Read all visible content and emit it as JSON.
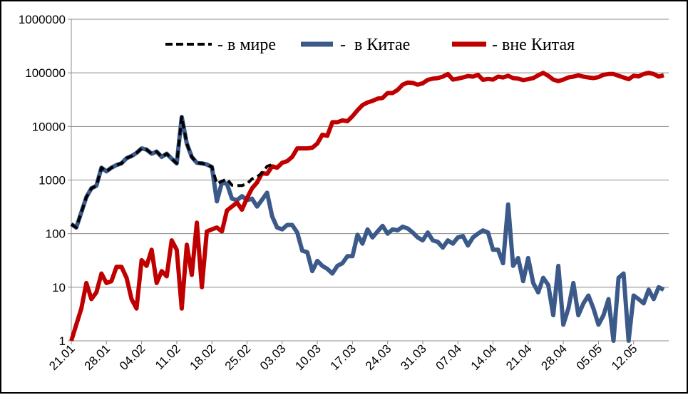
{
  "chart_data": {
    "type": "line",
    "title": "",
    "xlabel": "",
    "ylabel": "",
    "y_scale": "log",
    "ylim": [
      1,
      1000000
    ],
    "y_ticks": [
      1,
      10,
      100,
      1000,
      10000,
      100000,
      1000000
    ],
    "y_tick_labels": [
      "1",
      "10",
      "100",
      "1000",
      "10000",
      "100000",
      "1000000"
    ],
    "x_range": [
      "21.01",
      "19.05"
    ],
    "x_tick_labels": [
      "21.01",
      "28.01",
      "04.02",
      "11.02",
      "18.02",
      "25.02",
      "03.03",
      "10.03",
      "17.03",
      "24.03",
      "31.03",
      "07.04",
      "14.04",
      "21.04",
      "28.04",
      "05.05",
      "12.05"
    ],
    "grid": "horizontal",
    "legend": {
      "placement": "top",
      "entries": [
        {
          "label": "- в мире",
          "color": "#000000",
          "style": "dashed"
        },
        {
          "label": "-  в Китае",
          "color": "#3b5a8a",
          "style": "solid"
        },
        {
          "label": "- вне Китая",
          "color": "#c00000",
          "style": "solid"
        }
      ]
    },
    "series": [
      {
        "name": "в Китае",
        "color": "#3b5a8a",
        "style": "solid",
        "points": [
          [
            "21.01",
            150
          ],
          [
            "22.01",
            130
          ],
          [
            "23.01",
            250
          ],
          [
            "24.01",
            480
          ],
          [
            "25.01",
            700
          ],
          [
            "26.01",
            780
          ],
          [
            "27.01",
            1700
          ],
          [
            "28.01",
            1450
          ],
          [
            "29.01",
            1700
          ],
          [
            "30.01",
            1900
          ],
          [
            "31.01",
            2050
          ],
          [
            "01.02",
            2550
          ],
          [
            "02.02",
            2800
          ],
          [
            "03.02",
            3200
          ],
          [
            "04.02",
            3900
          ],
          [
            "05.02",
            3700
          ],
          [
            "06.02",
            3100
          ],
          [
            "07.02",
            3400
          ],
          [
            "08.02",
            2700
          ],
          [
            "09.02",
            3100
          ],
          [
            "10.02",
            2500
          ],
          [
            "11.02",
            2050
          ],
          [
            "12.02",
            15000
          ],
          [
            "13.02",
            4800
          ],
          [
            "14.02",
            2700
          ],
          [
            "15.02",
            2100
          ],
          [
            "16.02",
            2050
          ],
          [
            "17.02",
            1950
          ],
          [
            "18.02",
            1750
          ],
          [
            "19.02",
            400
          ],
          [
            "20.02",
            900
          ],
          [
            "21.02",
            850
          ],
          [
            "22.02",
            450
          ],
          [
            "23.02",
            420
          ],
          [
            "24.02",
            500
          ],
          [
            "25.02",
            420
          ],
          [
            "26.02",
            450
          ],
          [
            "27.02",
            320
          ],
          [
            "28.02",
            430
          ],
          [
            "29.02",
            580
          ],
          [
            "01.03",
            210
          ],
          [
            "02.03",
            130
          ],
          [
            "03.03",
            120
          ],
          [
            "04.03",
            145
          ],
          [
            "05.03",
            145
          ],
          [
            "06.03",
            105
          ],
          [
            "07.03",
            48
          ],
          [
            "08.03",
            45
          ],
          [
            "09.03",
            20
          ],
          [
            "10.03",
            31
          ],
          [
            "11.03",
            25
          ],
          [
            "12.03",
            22
          ],
          [
            "13.03",
            18
          ],
          [
            "14.03",
            25
          ],
          [
            "15.03",
            28
          ],
          [
            "16.03",
            38
          ],
          [
            "17.03",
            38
          ],
          [
            "18.03",
            95
          ],
          [
            "19.03",
            65
          ],
          [
            "20.03",
            120
          ],
          [
            "21.03",
            85
          ],
          [
            "22.03",
            110
          ],
          [
            "23.03",
            140
          ],
          [
            "24.03",
            100
          ],
          [
            "25.03",
            120
          ],
          [
            "26.03",
            115
          ],
          [
            "27.03",
            135
          ],
          [
            "28.03",
            125
          ],
          [
            "29.03",
            105
          ],
          [
            "30.03",
            85
          ],
          [
            "31.03",
            75
          ],
          [
            "01.04",
            105
          ],
          [
            "02.04",
            75
          ],
          [
            "03.04",
            70
          ],
          [
            "04.04",
            55
          ],
          [
            "05.04",
            75
          ],
          [
            "06.04",
            65
          ],
          [
            "07.04",
            85
          ],
          [
            "08.04",
            90
          ],
          [
            "09.04",
            60
          ],
          [
            "10.04",
            85
          ],
          [
            "11.04",
            100
          ],
          [
            "12.04",
            115
          ],
          [
            "13.04",
            105
          ],
          [
            "14.04",
            50
          ],
          [
            "15.04",
            50
          ],
          [
            "16.04",
            28
          ],
          [
            "17.04",
            350
          ],
          [
            "18.04",
            25
          ],
          [
            "19.04",
            35
          ],
          [
            "20.04",
            13
          ],
          [
            "21.04",
            35
          ],
          [
            "22.04",
            12
          ],
          [
            "23.04",
            8
          ],
          [
            "24.04",
            15
          ],
          [
            "25.04",
            11
          ],
          [
            "26.04",
            3
          ],
          [
            "27.04",
            25
          ],
          [
            "28.04",
            2
          ],
          [
            "29.04",
            4
          ],
          [
            "30.04",
            12
          ],
          [
            "01.05",
            3
          ],
          [
            "02.05",
            5
          ],
          [
            "03.05",
            7
          ],
          [
            "04.05",
            4
          ],
          [
            "05.05",
            2
          ],
          [
            "06.05",
            3
          ],
          [
            "07.05",
            6
          ],
          [
            "08.05",
            1
          ],
          [
            "09.05",
            15
          ],
          [
            "10.05",
            18
          ],
          [
            "11.05",
            1
          ],
          [
            "12.05",
            7
          ],
          [
            "13.05",
            6
          ],
          [
            "14.05",
            5
          ],
          [
            "15.05",
            9
          ],
          [
            "16.05",
            6
          ],
          [
            "17.05",
            10
          ],
          [
            "18.05",
            9
          ]
        ]
      },
      {
        "name": "вне Китая",
        "color": "#c00000",
        "style": "solid",
        "points": [
          [
            "21.01",
            1
          ],
          [
            "22.01",
            2
          ],
          [
            "23.01",
            4
          ],
          [
            "24.01",
            12
          ],
          [
            "25.01",
            6
          ],
          [
            "26.01",
            8
          ],
          [
            "27.01",
            18
          ],
          [
            "28.01",
            12
          ],
          [
            "29.01",
            13
          ],
          [
            "30.01",
            24
          ],
          [
            "31.01",
            24
          ],
          [
            "01.02",
            15
          ],
          [
            "02.02",
            6
          ],
          [
            "03.02",
            4
          ],
          [
            "04.02",
            32
          ],
          [
            "05.02",
            25
          ],
          [
            "06.02",
            50
          ],
          [
            "07.02",
            12
          ],
          [
            "08.02",
            20
          ],
          [
            "09.02",
            16
          ],
          [
            "10.02",
            75
          ],
          [
            "11.02",
            50
          ],
          [
            "12.02",
            4
          ],
          [
            "13.02",
            62
          ],
          [
            "14.02",
            17
          ],
          [
            "15.02",
            160
          ],
          [
            "16.02",
            10
          ],
          [
            "17.02",
            110
          ],
          [
            "18.02",
            120
          ],
          [
            "19.02",
            130
          ],
          [
            "20.02",
            110
          ],
          [
            "21.02",
            270
          ],
          [
            "22.02",
            320
          ],
          [
            "23.02",
            380
          ],
          [
            "24.02",
            280
          ],
          [
            "25.02",
            460
          ],
          [
            "26.02",
            700
          ],
          [
            "27.02",
            900
          ],
          [
            "28.02",
            1350
          ],
          [
            "29.02",
            1300
          ],
          [
            "01.03",
            1800
          ],
          [
            "02.03",
            1700
          ],
          [
            "03.03",
            2100
          ],
          [
            "04.03",
            2250
          ],
          [
            "05.03",
            2700
          ],
          [
            "06.03",
            3900
          ],
          [
            "07.03",
            3900
          ],
          [
            "08.03",
            3900
          ],
          [
            "09.03",
            4000
          ],
          [
            "10.03",
            4800
          ],
          [
            "11.03",
            7000
          ],
          [
            "12.03",
            6700
          ],
          [
            "13.03",
            12000
          ],
          [
            "14.03",
            12000
          ],
          [
            "15.03",
            13000
          ],
          [
            "16.03",
            12500
          ],
          [
            "17.03",
            15500
          ],
          [
            "18.03",
            20000
          ],
          [
            "19.03",
            25000
          ],
          [
            "20.03",
            28000
          ],
          [
            "21.03",
            30000
          ],
          [
            "22.03",
            33000
          ],
          [
            "23.03",
            34000
          ],
          [
            "24.03",
            42000
          ],
          [
            "25.03",
            42000
          ],
          [
            "26.03",
            48000
          ],
          [
            "27.03",
            60000
          ],
          [
            "28.03",
            66000
          ],
          [
            "29.03",
            65000
          ],
          [
            "30.03",
            60000
          ],
          [
            "31.03",
            64000
          ],
          [
            "01.04",
            74000
          ],
          [
            "02.04",
            78000
          ],
          [
            "03.04",
            80000
          ],
          [
            "04.04",
            85000
          ],
          [
            "05.04",
            95000
          ],
          [
            "06.04",
            75000
          ],
          [
            "07.04",
            78000
          ],
          [
            "08.04",
            82000
          ],
          [
            "09.04",
            87000
          ],
          [
            "10.04",
            85000
          ],
          [
            "11.04",
            92000
          ],
          [
            "12.04",
            74000
          ],
          [
            "13.04",
            77000
          ],
          [
            "14.04",
            75000
          ],
          [
            "15.04",
            85000
          ],
          [
            "16.04",
            82000
          ],
          [
            "17.04",
            88000
          ],
          [
            "18.04",
            80000
          ],
          [
            "19.04",
            78000
          ],
          [
            "20.04",
            73000
          ],
          [
            "21.04",
            76000
          ],
          [
            "22.04",
            80000
          ],
          [
            "23.04",
            90000
          ],
          [
            "24.04",
            100000
          ],
          [
            "25.04",
            88000
          ],
          [
            "26.04",
            75000
          ],
          [
            "27.04",
            70000
          ],
          [
            "28.04",
            75000
          ],
          [
            "29.04",
            82000
          ],
          [
            "30.04",
            85000
          ],
          [
            "01.05",
            90000
          ],
          [
            "02.05",
            85000
          ],
          [
            "03.05",
            82000
          ],
          [
            "04.05",
            80000
          ],
          [
            "05.05",
            83000
          ],
          [
            "06.05",
            92000
          ],
          [
            "07.05",
            95000
          ],
          [
            "08.05",
            95000
          ],
          [
            "09.05",
            88000
          ],
          [
            "10.05",
            82000
          ],
          [
            "11.05",
            76000
          ],
          [
            "12.05",
            88000
          ],
          [
            "13.05",
            86000
          ],
          [
            "14.05",
            95000
          ],
          [
            "15.05",
            100000
          ],
          [
            "16.05",
            95000
          ],
          [
            "17.05",
            85000
          ],
          [
            "18.05",
            90000
          ]
        ]
      },
      {
        "name": "в мире",
        "color": "#000000",
        "style": "dashed",
        "points": [
          [
            "21.01",
            150
          ],
          [
            "22.01",
            130
          ],
          [
            "23.01",
            250
          ],
          [
            "24.01",
            480
          ],
          [
            "25.01",
            700
          ],
          [
            "26.01",
            780
          ],
          [
            "27.01",
            1700
          ],
          [
            "28.01",
            1450
          ],
          [
            "29.01",
            1700
          ],
          [
            "30.01",
            1900
          ],
          [
            "31.01",
            2050
          ],
          [
            "01.02",
            2550
          ],
          [
            "02.02",
            2800
          ],
          [
            "03.02",
            3200
          ],
          [
            "04.02",
            3900
          ],
          [
            "05.02",
            3700
          ],
          [
            "06.02",
            3100
          ],
          [
            "07.02",
            3400
          ],
          [
            "08.02",
            2700
          ],
          [
            "09.02",
            3100
          ],
          [
            "10.02",
            2500
          ],
          [
            "11.02",
            2050
          ],
          [
            "12.02",
            15000
          ],
          [
            "13.02",
            4800
          ],
          [
            "14.02",
            2700
          ],
          [
            "15.02",
            2100
          ],
          [
            "16.02",
            2050
          ],
          [
            "17.02",
            1950
          ],
          [
            "18.02",
            1750
          ],
          [
            "19.02",
            850
          ],
          [
            "20.02",
            950
          ],
          [
            "21.02",
            1050
          ],
          [
            "22.02",
            800
          ],
          [
            "23.02",
            790
          ],
          [
            "24.02",
            790
          ],
          [
            "25.02",
            850
          ],
          [
            "26.02",
            1050
          ],
          [
            "27.02",
            1150
          ],
          [
            "28.02",
            1350
          ],
          [
            "29.02",
            1800
          ],
          [
            "01.03",
            1950
          ]
        ]
      }
    ]
  }
}
